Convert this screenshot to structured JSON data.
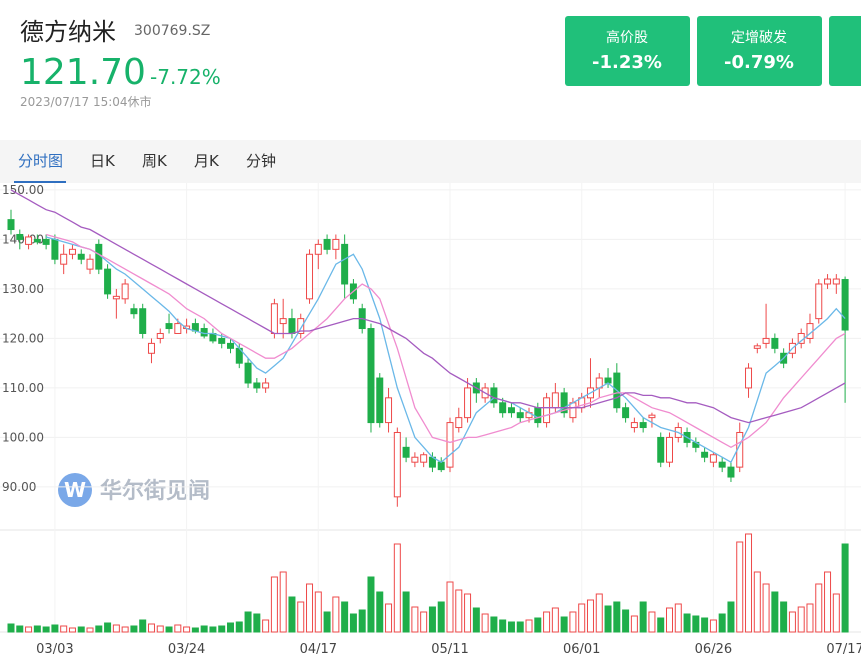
{
  "header": {
    "name": "德方纳米",
    "code": "300769.SZ",
    "price": "121.70",
    "change": "-7.72%",
    "time": "2023/07/17 15:04休市"
  },
  "tags": [
    {
      "label": "高价股",
      "value": "-1.23%"
    },
    {
      "label": "定增破发",
      "value": "-0.79%"
    }
  ],
  "tabs": [
    "分时图",
    "日K",
    "周K",
    "月K",
    "分钟"
  ],
  "watermark": "华尔街见闻",
  "chart_data": {
    "type": "candlestick",
    "categories": [
      null,
      null,
      null,
      null,
      null,
      "03/03",
      null,
      null,
      null,
      null,
      null,
      null,
      null,
      null,
      null,
      null,
      null,
      null,
      null,
      null,
      "03/24",
      null,
      null,
      null,
      null,
      null,
      null,
      null,
      null,
      null,
      null,
      null,
      null,
      null,
      null,
      "04/17",
      null,
      null,
      null,
      null,
      null,
      null,
      null,
      null,
      null,
      null,
      null,
      null,
      null,
      null,
      "05/11",
      null,
      null,
      null,
      null,
      null,
      null,
      null,
      null,
      null,
      null,
      null,
      null,
      null,
      null,
      "06/01",
      null,
      null,
      null,
      null,
      null,
      null,
      null,
      null,
      null,
      null,
      null,
      null,
      null,
      null,
      "06/26",
      null,
      null,
      null,
      null,
      null,
      null,
      null,
      null,
      null,
      null,
      null,
      null,
      null,
      null,
      "07/17"
    ],
    "open": [
      144,
      141,
      139,
      140,
      140,
      140,
      135,
      137,
      137,
      134,
      139,
      134,
      128,
      128,
      126,
      126,
      117,
      120,
      123,
      121,
      122,
      123,
      122,
      121,
      120,
      119,
      118,
      115,
      111,
      110,
      121,
      123,
      124,
      121,
      128,
      137,
      140,
      138,
      139,
      131,
      126,
      122,
      112,
      103,
      88,
      98,
      95,
      95,
      96,
      95,
      94,
      102,
      104,
      111,
      108,
      110,
      107,
      106,
      105,
      104,
      106,
      103,
      106,
      109,
      104,
      106,
      108,
      110,
      112,
      113,
      106,
      102,
      103,
      104,
      100,
      95,
      100,
      101,
      99,
      97,
      95,
      95,
      94,
      94,
      110,
      118,
      119,
      120,
      117,
      117,
      119,
      120,
      124,
      131,
      131,
      131.9
    ],
    "high": [
      146,
      142,
      141,
      141,
      141,
      141,
      139,
      139,
      138,
      137,
      140,
      135,
      130,
      132,
      127,
      127,
      120,
      122,
      125,
      124,
      124,
      124,
      123,
      122,
      121,
      120,
      119,
      116,
      112,
      112,
      128,
      128,
      126,
      125,
      138,
      140,
      141,
      141,
      141,
      132,
      127,
      123,
      113,
      110,
      102,
      100,
      97,
      97,
      97,
      96,
      104,
      106,
      112,
      112,
      111,
      111,
      108,
      107,
      106,
      106,
      107,
      109,
      111,
      110,
      108,
      109,
      116,
      113,
      114,
      115,
      107,
      104,
      104,
      105,
      101,
      101,
      103,
      102,
      100,
      98,
      97,
      96,
      95,
      103,
      115,
      119,
      127,
      121,
      118,
      120,
      122,
      125,
      132,
      133,
      133,
      132.5
    ],
    "low": [
      141,
      138,
      138,
      139,
      138,
      135,
      133,
      136,
      135,
      133,
      133,
      128,
      124,
      127,
      124,
      120,
      115,
      119,
      121,
      121,
      121,
      121,
      120,
      119,
      118,
      117,
      114,
      110,
      109,
      109,
      120,
      120,
      120,
      120,
      127,
      134,
      137,
      136,
      128,
      127,
      121,
      101,
      102,
      101,
      86,
      95,
      94,
      94,
      93,
      93,
      93,
      101,
      103,
      107,
      107,
      106,
      104,
      104,
      103,
      103,
      102,
      102,
      105,
      104,
      103,
      105,
      106,
      108,
      110,
      105,
      103,
      101,
      101,
      102,
      94,
      94,
      99,
      98,
      97,
      95,
      94,
      93,
      91,
      93,
      108,
      117,
      118,
      117,
      114,
      116,
      118,
      119,
      123,
      130,
      129,
      107
    ],
    "close": [
      142,
      140,
      140.5,
      139.5,
      139,
      136,
      137,
      138,
      136,
      136,
      134,
      129,
      128.5,
      131,
      125,
      121,
      119,
      121,
      122,
      123,
      122.5,
      121.5,
      120.5,
      119.5,
      119,
      118,
      115,
      111,
      110,
      111,
      127,
      124,
      121,
      124,
      137,
      139,
      138,
      140,
      131,
      128,
      122,
      103,
      103,
      108,
      101,
      96,
      96,
      96.5,
      94,
      93.5,
      103,
      104,
      110,
      109,
      110,
      107,
      105,
      105,
      104,
      105,
      103,
      108,
      109,
      105,
      107,
      108,
      110,
      112,
      111,
      106,
      104,
      103,
      102,
      104.5,
      95,
      100,
      102,
      99,
      98,
      96,
      96.5,
      94,
      92,
      101,
      114,
      118.5,
      120,
      118,
      115,
      119,
      121,
      123,
      131,
      132,
      132,
      121.7
    ],
    "volume": [
      8,
      6,
      5,
      6,
      5,
      7,
      6,
      4,
      5,
      4,
      6,
      9,
      7,
      5,
      6,
      12,
      8,
      6,
      5,
      7,
      5,
      4,
      6,
      5,
      6,
      9,
      10,
      20,
      18,
      12,
      55,
      60,
      35,
      30,
      48,
      40,
      20,
      35,
      30,
      18,
      22,
      55,
      40,
      28,
      88,
      40,
      25,
      20,
      25,
      30,
      50,
      42,
      38,
      24,
      18,
      15,
      12,
      10,
      10,
      12,
      14,
      20,
      24,
      15,
      20,
      28,
      32,
      38,
      26,
      30,
      22,
      16,
      30,
      20,
      14,
      24,
      28,
      18,
      16,
      14,
      12,
      18,
      30,
      90,
      98,
      60,
      48,
      40,
      30,
      20,
      25,
      28,
      48,
      60,
      38,
      88
    ],
    "ma_lines": [
      {
        "color": "#6ab8e8",
        "values": [
          null,
          null,
          null,
          null,
          140.5,
          140,
          139.5,
          139,
          138.5,
          138,
          137,
          135.5,
          134,
          133,
          131.5,
          130,
          128.5,
          127,
          125.5,
          123.5,
          122,
          121.5,
          121,
          121,
          120.5,
          120,
          118,
          116,
          114,
          113,
          114.5,
          116,
          119,
          122,
          125,
          128,
          131.5,
          135,
          136,
          137,
          134,
          129,
          124,
          117,
          110,
          105,
          100,
          98,
          96,
          95,
          96.5,
          98,
          101.5,
          105,
          106.5,
          108,
          107.5,
          107,
          106,
          105,
          104,
          104.5,
          105,
          106,
          107,
          108,
          109,
          110,
          111,
          109.5,
          108,
          106,
          104,
          103,
          102,
          101.5,
          101,
          100,
          99,
          98,
          97,
          96,
          95,
          98.5,
          102,
          107.5,
          113,
          114.5,
          116,
          118,
          119.5,
          121,
          122.5,
          124,
          126,
          124
        ]
      },
      {
        "color": "#f08ccf",
        "values": [
          null,
          null,
          null,
          null,
          141,
          140.5,
          140,
          139.5,
          138.5,
          138,
          137,
          136,
          135,
          134,
          133,
          132,
          131,
          130,
          129,
          127.5,
          126,
          125,
          124,
          122.5,
          121,
          120,
          119,
          118,
          117,
          116,
          116,
          117,
          118,
          119.5,
          121,
          122.5,
          124,
          126,
          128,
          129.5,
          131,
          130,
          128,
          123,
          118,
          112,
          106,
          103,
          100,
          99.5,
          99,
          99.5,
          100,
          100,
          100.5,
          101,
          101.5,
          102,
          103,
          103.5,
          104,
          104.5,
          105,
          105.5,
          106,
          106.5,
          107,
          108,
          108.5,
          109,
          109,
          108,
          107,
          106,
          105.5,
          105,
          104,
          103,
          102,
          101,
          100,
          99,
          98,
          99,
          100,
          101.5,
          103,
          105.5,
          108,
          110,
          112,
          114,
          116,
          118,
          120,
          121
        ]
      },
      {
        "color": "#a55cc0",
        "values": [
          150,
          149,
          148,
          147,
          146,
          145.5,
          144.5,
          143.5,
          142.5,
          142,
          141,
          140,
          139,
          138,
          137,
          136,
          135,
          134,
          133,
          132,
          131,
          130,
          129,
          128,
          127,
          126,
          125,
          124,
          123,
          122,
          121,
          121,
          121,
          121.5,
          121.5,
          122,
          122.5,
          123,
          123.5,
          124,
          124,
          123.5,
          123,
          122,
          121,
          120,
          118.5,
          117,
          116,
          114.5,
          113,
          112,
          111,
          110,
          109,
          108,
          107.5,
          107,
          107,
          106.5,
          106,
          106,
          106,
          106,
          106,
          106,
          106.5,
          107,
          107.5,
          108,
          109,
          109,
          108.5,
          108.5,
          108,
          108,
          107.5,
          107,
          107,
          106.5,
          106,
          105,
          104,
          103.5,
          103,
          103.5,
          104,
          104.5,
          105,
          105.5,
          106,
          107,
          108,
          109,
          110,
          111
        ]
      }
    ],
    "up_color": "#ee4848",
    "down_color": "#1fae4a",
    "ylim": [
      81.3,
      151.4
    ],
    "yticks": [
      {
        "value": 150,
        "label": "150.00"
      },
      {
        "value": 140,
        "label": "140.00"
      },
      {
        "value": 130,
        "label": "130.00"
      },
      {
        "value": 120,
        "label": "120.00"
      },
      {
        "value": 110,
        "label": "110.00"
      },
      {
        "value": 100,
        "label": "100.00"
      },
      {
        "value": 90,
        "label": "90.00"
      }
    ],
    "vlim": [
      0,
      100
    ],
    "grid": true
  }
}
